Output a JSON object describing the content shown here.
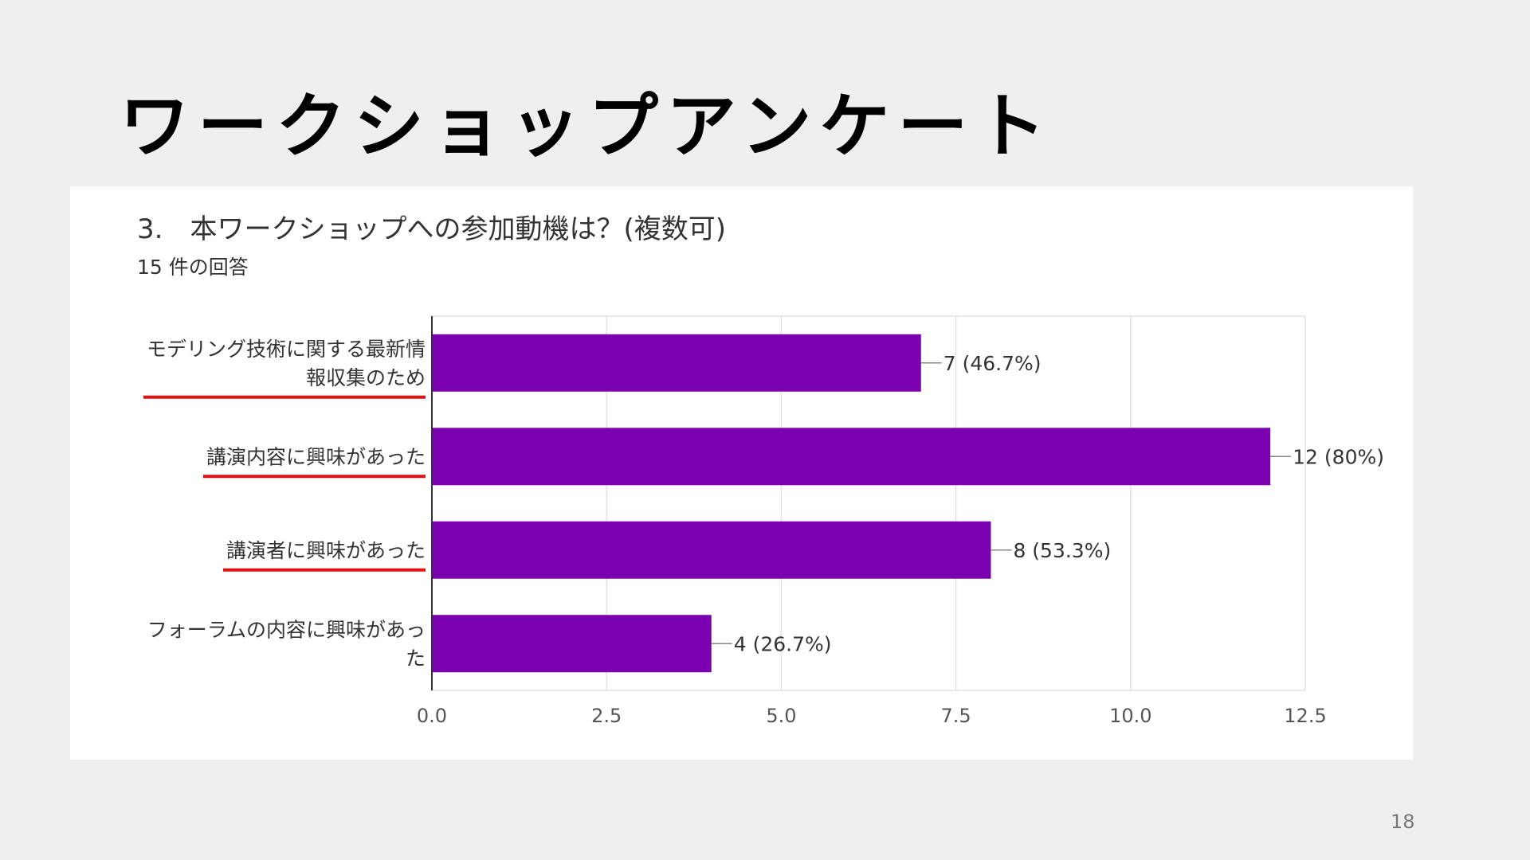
{
  "slide": {
    "title": "ワークショップアンケート",
    "page_number": "18"
  },
  "question": {
    "title": "3.　本ワークショップへの参加動機は？(複数可)",
    "response_count": "15 件の回答"
  },
  "chart_data": {
    "type": "bar",
    "orientation": "horizontal",
    "categories": [
      [
        "モデリング技術に関する最新情",
        "報収集のため"
      ],
      [
        "講演内容に興味があった"
      ],
      [
        "講演者に興味があった"
      ],
      [
        "フォーラムの内容に興味があっ",
        "た"
      ]
    ],
    "values": [
      7,
      12,
      8,
      4
    ],
    "data_labels": [
      "7 (46.7%)",
      "12 (80%)",
      "8 (53.3%)",
      "4 (26.7%)"
    ],
    "underlined": [
      true,
      true,
      true,
      false
    ],
    "xticks": [
      "0.0",
      "2.5",
      "5.0",
      "7.5",
      "10.0",
      "12.5"
    ],
    "xlim": [
      0,
      12.5
    ],
    "grid": true,
    "bar_color": "#7b00b0",
    "underline_color": "#e01010"
  }
}
